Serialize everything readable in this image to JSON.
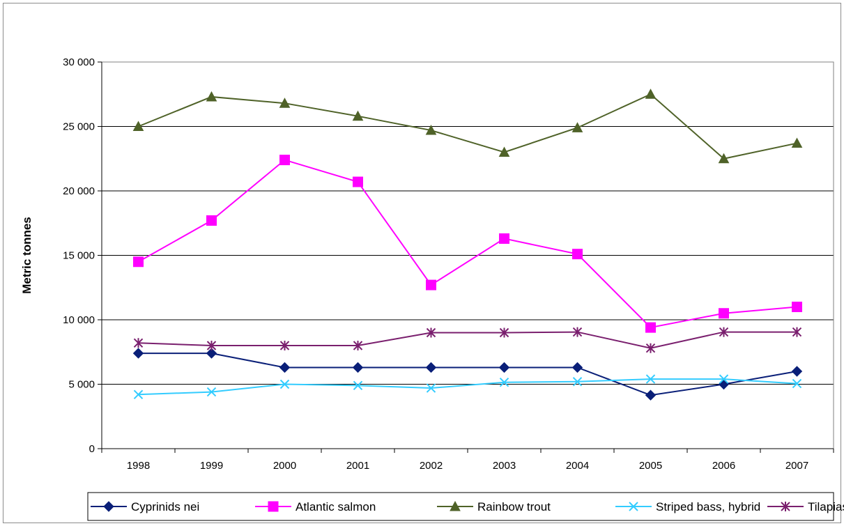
{
  "chart_data": {
    "type": "line",
    "title": "",
    "xlabel": "",
    "ylabel": "Metric tonnes",
    "categories": [
      "1998",
      "1999",
      "2000",
      "2001",
      "2002",
      "2003",
      "2004",
      "2005",
      "2006",
      "2007"
    ],
    "ylim": [
      0,
      30000
    ],
    "yticks": [
      0,
      5000,
      10000,
      15000,
      20000,
      25000,
      30000
    ],
    "ytick_labels": [
      "0",
      "5 000",
      "10 000",
      "15 000",
      "20 000",
      "25 000",
      "30 000"
    ],
    "grid": true,
    "legend_position": "bottom",
    "series": [
      {
        "name": "Cyprinids nei",
        "color": "#0a1f78",
        "marker": "diamond",
        "values": [
          7400,
          7400,
          6300,
          6300,
          6300,
          6300,
          6300,
          4150,
          5000,
          6000
        ]
      },
      {
        "name": "Atlantic salmon",
        "color": "#ff00ff",
        "marker": "square",
        "values": [
          14500,
          17700,
          22400,
          20700,
          12700,
          16300,
          15100,
          9400,
          10500,
          11000
        ]
      },
      {
        "name": "Rainbow trout",
        "color": "#4f6228",
        "marker": "triangle",
        "values": [
          25000,
          27300,
          26800,
          25800,
          24700,
          23000,
          24900,
          27500,
          22500,
          23700
        ]
      },
      {
        "name": "Striped bass, hybrid",
        "color": "#33ccff",
        "marker": "x",
        "values": [
          4200,
          4400,
          5000,
          4900,
          4700,
          5150,
          5200,
          5400,
          5400,
          5050
        ]
      },
      {
        "name": "Tilapias nei",
        "color": "#7a1f6e",
        "marker": "star",
        "values": [
          8200,
          8000,
          8000,
          8000,
          9000,
          9000,
          9050,
          7800,
          9050,
          9050
        ]
      }
    ]
  }
}
